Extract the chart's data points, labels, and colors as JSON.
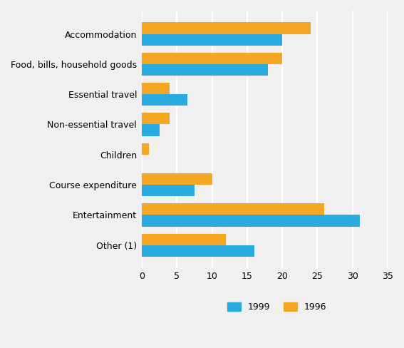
{
  "categories": [
    "Accommodation",
    "Food, bills, household goods",
    "Essential travel",
    "Non-essential travel",
    "Children",
    "Course expenditure",
    "Entertainment",
    "Other (1)"
  ],
  "values_1999": [
    20,
    18,
    6.5,
    2.5,
    0,
    7.5,
    31,
    16
  ],
  "values_1996": [
    24,
    20,
    4,
    4,
    1,
    10,
    26,
    12
  ],
  "color_1999": "#29ABE2",
  "color_1996": "#F5A623",
  "xlim": [
    0,
    35
  ],
  "xticks": [
    0,
    5,
    10,
    15,
    20,
    25,
    30,
    35
  ],
  "bar_height": 0.38,
  "legend_labels": [
    "1999",
    "1996"
  ],
  "background_color": "#F0F0F0",
  "grid_color": "#FFFFFF"
}
